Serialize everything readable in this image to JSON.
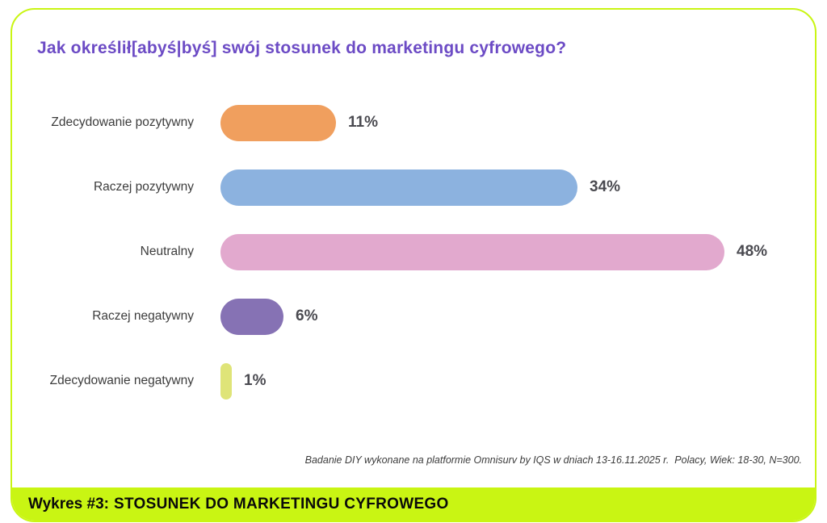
{
  "title": "Jak określił[abyś|byś] swój stosunek do marketingu cyfrowego?",
  "footnote": "Badanie DIY wykonane na platformie Omnisurv by IQS w dniach 13-16.11.2025 r.  Polacy, Wiek: 18-30, N=300.",
  "caption": {
    "prefix": "Wykres #3:",
    "text": "STOSUNEK DO MARKETINGU CYFROWEGO"
  },
  "colors": {
    "accent_lime": "#C9F513",
    "title_purple": "#6C4BC5",
    "category_label": "#3C3C3C",
    "value_label": "#4A4A50"
  },
  "chart_data": {
    "type": "bar",
    "orientation": "horizontal",
    "title": "Jak określił[abyś|byś] swój stosunek do marketingu cyfrowego?",
    "categories": [
      "Zdecydowanie pozytywny",
      "Raczej pozytywny",
      "Neutralny",
      "Raczej negatywny",
      "Zdecydowanie negatywny"
    ],
    "values": [
      11,
      34,
      48,
      6,
      1
    ],
    "value_labels": [
      "11%",
      "34%",
      "48%",
      "6%",
      "1%"
    ],
    "bar_colors": [
      "#F09F5E",
      "#8CB2DF",
      "#E2A9CE",
      "#8672B4",
      "#DFE478"
    ],
    "unit": "%",
    "xlim": [
      0,
      50
    ],
    "grid": false,
    "legend": false
  }
}
